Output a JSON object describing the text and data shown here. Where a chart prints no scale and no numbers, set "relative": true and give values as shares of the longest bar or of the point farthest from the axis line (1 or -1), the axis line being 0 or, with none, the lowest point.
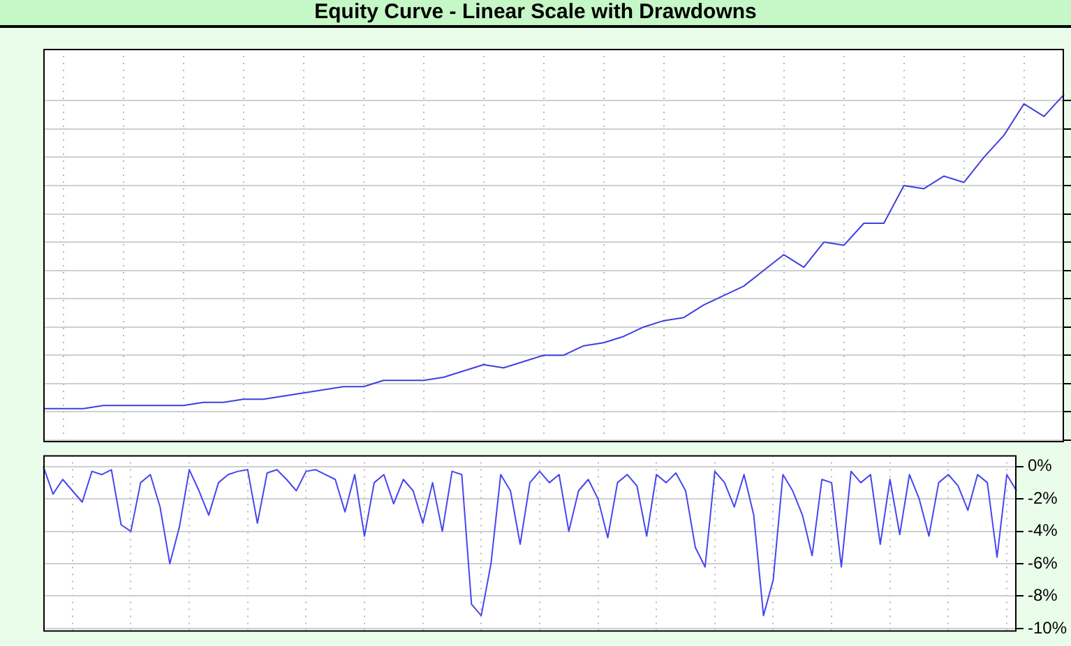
{
  "chart_data": [
    {
      "type": "line",
      "title": "Equity Curve - Linear Scale with Drawdowns",
      "relative": true,
      "grid": true,
      "tick_labels": false,
      "categories": [
        null,
        null,
        null,
        null,
        null,
        null,
        null,
        null,
        null,
        null,
        null,
        null,
        null,
        null,
        null,
        null,
        null,
        null,
        null,
        null,
        null,
        null,
        null,
        null,
        null,
        null,
        null,
        null,
        null,
        null,
        null,
        null,
        null,
        null,
        null,
        null,
        null,
        null,
        null,
        null,
        null,
        null,
        null,
        null,
        null,
        null,
        null,
        null,
        null,
        null,
        null,
        null
      ],
      "series": [
        {
          "color": "#3f3fe0",
          "values": [
            0,
            0.0,
            0.0,
            0.01,
            0.01,
            0.01,
            0.01,
            0.01,
            0.02,
            0.02,
            0.03,
            0.03,
            0.04,
            0.05,
            0.06,
            0.07,
            0.07,
            0.09,
            0.09,
            0.09,
            0.1,
            0.12,
            0.14,
            0.13,
            0.15,
            0.17,
            0.17,
            0.2,
            0.21,
            0.23,
            0.26,
            0.28,
            0.29,
            0.33,
            0.36,
            0.39,
            0.44,
            0.49,
            0.45,
            0.53,
            0.52,
            0.59,
            0.59,
            0.71,
            0.7,
            0.74,
            0.72,
            0.8,
            0.87,
            0.97,
            0.93,
            1
          ]
        }
      ]
    },
    {
      "type": "line",
      "grid": true,
      "tick_labels": "y",
      "ylim": [
        -10.2,
        0.7
      ],
      "yticks": [
        {
          "value": 0,
          "label": "0%"
        },
        {
          "value": -2,
          "label": "-2%"
        },
        {
          "value": -4,
          "label": "-4%"
        },
        {
          "value": -6,
          "label": "-6%"
        },
        {
          "value": -8,
          "label": "-8%"
        },
        {
          "value": -10,
          "label": "-10%"
        }
      ],
      "categories": [
        null,
        null,
        null,
        null,
        null,
        null,
        null,
        null,
        null,
        null,
        null,
        null,
        null,
        null,
        null,
        null,
        null,
        null,
        null,
        null,
        null,
        null,
        null,
        null,
        null,
        null,
        null,
        null,
        null,
        null,
        null,
        null,
        null,
        null,
        null,
        null,
        null,
        null,
        null,
        null,
        null,
        null,
        null,
        null,
        null,
        null,
        null,
        null,
        null,
        null,
        null,
        null,
        null,
        null,
        null,
        null,
        null,
        null,
        null,
        null,
        null,
        null,
        null,
        null,
        null,
        null,
        null,
        null,
        null,
        null,
        null,
        null,
        null,
        null,
        null,
        null,
        null,
        null,
        null,
        null,
        null,
        null,
        null,
        null,
        null,
        null,
        null,
        null,
        null,
        null,
        null,
        null,
        null,
        null,
        null,
        null,
        null,
        null,
        null,
        null,
        null
      ],
      "series": [
        {
          "color": "#4646f0",
          "values": [
            0,
            -1.7,
            -0.8,
            -1.5,
            -2.2,
            -0.3,
            -0.5,
            -0.2,
            -3.6,
            -4.0,
            -1.0,
            -0.5,
            -2.5,
            -6.0,
            -3.7,
            -0.2,
            -1.5,
            -3.0,
            -1.0,
            -0.5,
            -0.3,
            -0.2,
            -3.5,
            -0.4,
            -0.2,
            -0.8,
            -1.5,
            -0.3,
            -0.2,
            -0.5,
            -0.8,
            -2.8,
            -0.5,
            -4.3,
            -1.0,
            -0.5,
            -2.3,
            -0.8,
            -1.5,
            -3.5,
            -1.0,
            -4.0,
            -0.3,
            -0.5,
            -8.5,
            -9.2,
            -6.0,
            -0.5,
            -1.5,
            -4.8,
            -1.0,
            -0.3,
            -1.0,
            -0.5,
            -4.0,
            -1.5,
            -0.8,
            -2.0,
            -4.4,
            -1.0,
            -0.5,
            -1.2,
            -4.3,
            -0.5,
            -1.0,
            -0.4,
            -1.5,
            -5.0,
            -6.2,
            -0.3,
            -1.0,
            -2.5,
            -0.5,
            -3.0,
            -9.2,
            -7.0,
            -0.5,
            -1.5,
            -3.0,
            -5.5,
            -0.8,
            -1.0,
            -6.2,
            -0.3,
            -1.0,
            -0.5,
            -4.8,
            -0.8,
            -4.2,
            -0.5,
            -2.0,
            -4.3,
            -1.0,
            -0.5,
            -1.2,
            -2.7,
            -0.5,
            -1.0,
            -5.6,
            -0.5,
            -1.5
          ]
        }
      ]
    }
  ]
}
